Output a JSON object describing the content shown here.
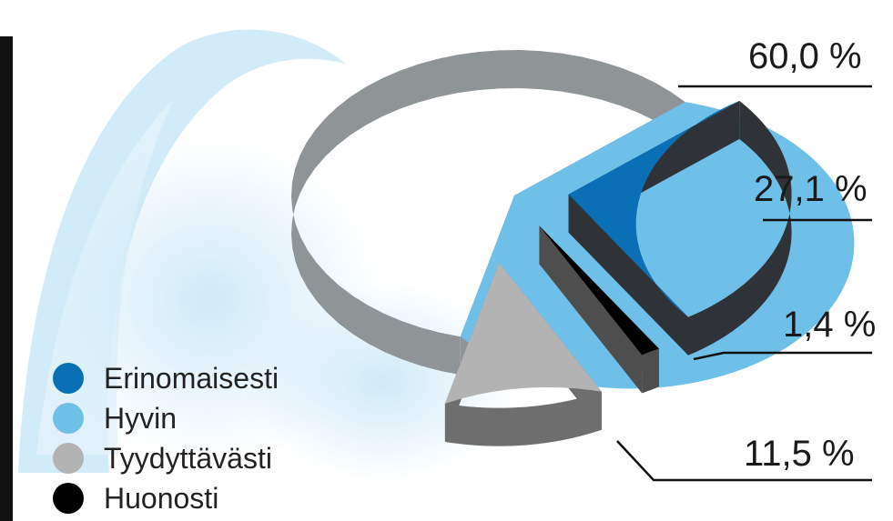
{
  "chart_data": {
    "type": "pie",
    "title": "",
    "slices": [
      {
        "name": "Erinomaisesti",
        "value": 27.1,
        "label": "27,1 %",
        "color": "#0a6fb5"
      },
      {
        "name": "Hyvin",
        "value": 60.0,
        "label": "60,0 %",
        "color": "#6fc0e8"
      },
      {
        "name": "Tyydyttävästi",
        "value": 11.5,
        "label": "11,5 %",
        "color": "#b3b3b3"
      },
      {
        "name": "Huonosti",
        "value": 1.4,
        "label": "1,4 %",
        "color": "#000000"
      }
    ],
    "legend_position": "bottom-left",
    "exploded": true,
    "three_d": true
  }
}
